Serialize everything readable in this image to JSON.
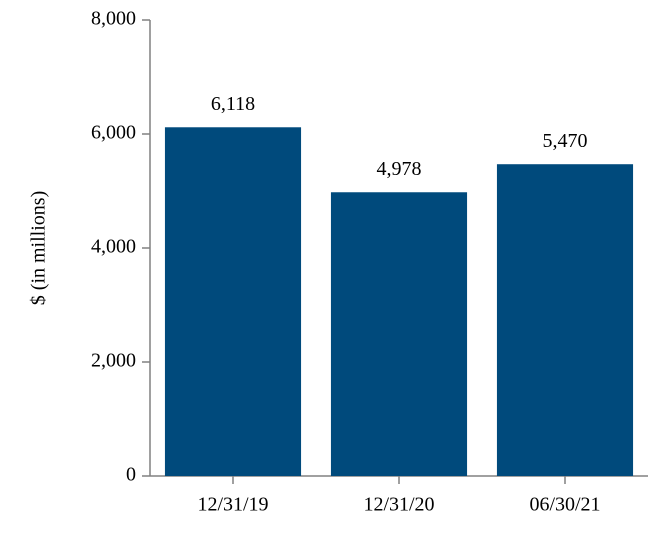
{
  "chart_data": {
    "type": "bar",
    "ylabel": "$ (in millions)",
    "categories": [
      "12/31/19",
      "12/31/20",
      "06/30/21"
    ],
    "values": [
      6118,
      4978,
      5470
    ],
    "value_labels": [
      "6,118",
      "4,978",
      "5,470"
    ],
    "color": "#004a7c",
    "ylim": [
      0,
      8000
    ],
    "yticks": [
      0,
      {
        "value": 2000,
        "label": "2,000"
      },
      {
        "value": 4000,
        "label": "4,000"
      },
      {
        "value": 6000,
        "label": "6,000"
      },
      {
        "value": 8000,
        "label": "8,000"
      }
    ],
    "grid": false
  }
}
